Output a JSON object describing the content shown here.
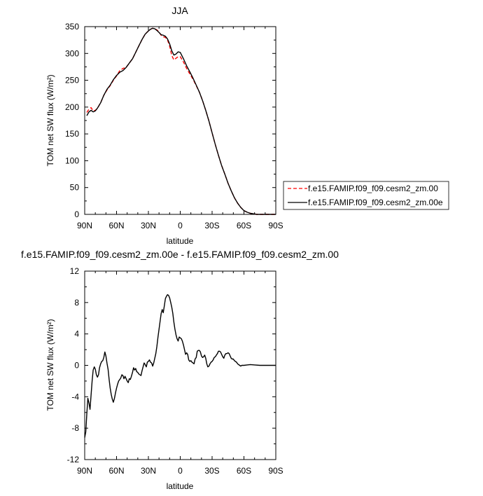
{
  "chart_data": [
    {
      "type": "line",
      "title": "JJA",
      "xlabel": "latitude",
      "ylabel": "TOM net SW flux (W/m²)",
      "xlim": [
        90,
        -90
      ],
      "ylim": [
        0,
        350
      ],
      "x_tick_values": [
        90,
        60,
        30,
        0,
        -30,
        -60,
        -90
      ],
      "x_tick_labels": [
        "90N",
        "60N",
        "30N",
        "0",
        "30S",
        "60S",
        "90S"
      ],
      "y_tick_values": [
        0,
        50,
        100,
        150,
        200,
        250,
        300,
        350
      ],
      "y_tick_labels": [
        "0",
        "50",
        "100",
        "150",
        "200",
        "250",
        "300",
        "350"
      ],
      "legend_position": "right",
      "series": [
        {
          "name": "f.e15.FAMIP.f09_f09.cesm2_zm.00",
          "color": "#ff0000",
          "dash": "dashed",
          "x": [
            88,
            86,
            84,
            82,
            80,
            78,
            75,
            72,
            69,
            66,
            63,
            60,
            57,
            54,
            51,
            48,
            45,
            42,
            39,
            36,
            33,
            30,
            28,
            26,
            24,
            22,
            20,
            18,
            16,
            14,
            12,
            10,
            8,
            6,
            4,
            2,
            0,
            -3,
            -6,
            -9,
            -12,
            -15,
            -18,
            -21,
            -24,
            -27,
            -30,
            -33,
            -36,
            -39,
            -42,
            -45,
            -48,
            -51,
            -54,
            -57,
            -60,
            -63,
            -66,
            -69,
            -72,
            -75,
            -78,
            -81,
            -84,
            -87,
            -90
          ],
          "y": [
            190,
            196,
            199,
            193,
            194,
            198,
            208,
            222,
            232,
            240,
            250,
            258,
            268,
            272,
            274,
            282,
            290,
            302,
            314,
            326,
            336,
            342,
            345,
            347,
            346,
            344,
            340,
            334,
            331,
            330,
            325,
            314,
            296,
            288,
            291,
            294,
            294,
            284,
            272,
            262,
            252,
            240,
            228,
            212,
            194,
            174,
            152,
            130,
            110,
            91,
            75,
            58,
            44,
            31,
            21,
            13,
            7,
            4,
            2,
            1,
            0,
            0,
            0,
            0,
            0,
            0,
            0
          ]
        },
        {
          "name": "f.e15.FAMIP.f09_f09.cesm2_zm.00e",
          "color": "#000000",
          "dash": "solid",
          "x": [
            88,
            86,
            84,
            82,
            80,
            78,
            75,
            72,
            69,
            66,
            63,
            60,
            57,
            54,
            51,
            48,
            45,
            42,
            39,
            36,
            33,
            30,
            28,
            26,
            24,
            22,
            20,
            18,
            16,
            14,
            12,
            10,
            8,
            6,
            4,
            2,
            0,
            -3,
            -6,
            -9,
            -12,
            -15,
            -18,
            -21,
            -24,
            -27,
            -30,
            -33,
            -36,
            -39,
            -42,
            -45,
            -48,
            -51,
            -54,
            -57,
            -60,
            -63,
            -66,
            -69,
            -72,
            -75,
            -78,
            -81,
            -84,
            -87,
            -90
          ],
          "y": [
            184,
            191,
            194,
            191,
            193,
            198,
            208,
            222,
            233,
            241,
            251,
            259,
            265,
            268,
            274,
            282,
            290,
            302,
            314,
            326,
            336,
            342,
            345,
            347,
            346,
            343,
            339,
            335,
            334,
            332,
            327,
            318,
            305,
            297,
            299,
            303,
            302,
            290,
            277,
            266,
            254,
            241,
            228,
            212,
            194,
            174,
            152,
            130,
            110,
            91,
            75,
            58,
            44,
            31,
            21,
            13,
            7,
            4,
            2,
            1,
            0,
            0,
            0,
            0,
            0,
            0,
            0
          ]
        }
      ]
    },
    {
      "type": "line",
      "title": "f.e15.FAMIP.f09_f09.cesm2_zm.00e - f.e15.FAMIP.f09_f09.cesm2_zm.00",
      "xlabel": "latitude",
      "ylabel": "TOM net SW flux (W/m²)",
      "xlim": [
        90,
        -90
      ],
      "ylim": [
        -12,
        12
      ],
      "x_tick_values": [
        90,
        60,
        30,
        0,
        -30,
        -60,
        -90
      ],
      "x_tick_labels": [
        "90N",
        "60N",
        "30N",
        "0",
        "30S",
        "60S",
        "90S"
      ],
      "y_tick_values": [
        -12,
        -8,
        -4,
        0,
        4,
        8,
        12
      ],
      "y_tick_labels": [
        "-12",
        "-8",
        "-4",
        "0",
        "4",
        "8",
        "12"
      ],
      "series": [
        {
          "color": "#000000",
          "dash": "solid",
          "x": [
            90,
            89,
            88,
            87,
            86,
            85,
            84,
            83,
            82,
            81,
            80,
            79,
            78,
            77,
            76,
            75,
            74,
            73,
            72,
            71,
            70,
            69,
            68,
            67,
            66,
            65,
            64,
            63,
            62,
            61,
            60,
            59,
            58,
            57,
            56,
            55,
            54,
            53,
            52,
            51,
            50,
            49,
            48,
            47,
            46,
            45,
            44,
            43,
            42,
            41,
            40,
            39,
            38,
            37,
            36,
            35,
            34,
            33,
            32,
            31,
            30,
            29,
            28,
            27,
            26,
            25,
            24,
            23,
            22,
            21,
            20,
            19,
            18,
            17,
            16,
            15,
            14,
            13,
            12,
            11,
            10,
            9,
            8,
            7,
            6,
            5,
            4,
            3,
            2,
            1,
            0,
            -1,
            -2,
            -3,
            -4,
            -5,
            -6,
            -7,
            -8,
            -9,
            -10,
            -11,
            -12,
            -13,
            -14,
            -15,
            -16,
            -17,
            -18,
            -19,
            -20,
            -21,
            -22,
            -23,
            -24,
            -25,
            -26,
            -27,
            -28,
            -29,
            -30,
            -31,
            -32,
            -33,
            -34,
            -35,
            -36,
            -37,
            -38,
            -39,
            -40,
            -41,
            -42,
            -43,
            -44,
            -45,
            -46,
            -47,
            -48,
            -49,
            -50,
            -51,
            -52,
            -53,
            -54,
            -55,
            -56,
            -57,
            -58,
            -60,
            -63,
            -66,
            -70,
            -75,
            -80,
            -85,
            -90
          ],
          "y": [
            -9.2,
            -8.5,
            -6.2,
            -4.2,
            -4.8,
            -5.6,
            -3.8,
            -2.0,
            -0.6,
            -0.2,
            -0.5,
            -1.2,
            -1.5,
            -1.2,
            -0.3,
            0.2,
            0.5,
            0.6,
            1.0,
            1.7,
            1.2,
            0.3,
            -0.5,
            -1.8,
            -2.9,
            -3.7,
            -4.3,
            -4.7,
            -4.2,
            -3.5,
            -2.9,
            -2.4,
            -2.0,
            -1.8,
            -1.6,
            -1.2,
            -1.3,
            -1.7,
            -1.4,
            -1.7,
            -2.0,
            -2.2,
            -1.7,
            -1.8,
            -1.4,
            -0.9,
            -0.3,
            -0.6,
            -0.4,
            -0.8,
            -0.9,
            -1.1,
            -1.2,
            -1.3,
            -0.7,
            -0.2,
            0.3,
            0.1,
            -0.2,
            0.4,
            0.5,
            0.7,
            0.4,
            0.3,
            -0.1,
            0.3,
            0.9,
            1.5,
            2.4,
            3.6,
            4.6,
            5.6,
            6.6,
            7.1,
            6.7,
            7.6,
            8.5,
            8.8,
            9.0,
            8.9,
            8.6,
            8.0,
            7.4,
            6.6,
            5.5,
            4.6,
            3.9,
            3.4,
            3.1,
            3.6,
            3.5,
            3.4,
            3.1,
            2.6,
            2.0,
            1.4,
            1.6,
            1.4,
            0.7,
            0.5,
            0.6,
            0.4,
            0.3,
            0.2,
            0.8,
            1.0,
            1.8,
            1.9,
            1.9,
            1.7,
            1.2,
            1.0,
            1.1,
            1.3,
            0.9,
            0.2,
            -0.2,
            -0.1,
            0.2,
            0.4,
            0.5,
            0.7,
            1.0,
            1.1,
            1.3,
            1.5,
            1.8,
            1.8,
            1.7,
            1.4,
            1.1,
            0.9,
            1.3,
            1.5,
            1.5,
            1.6,
            1.5,
            1.2,
            0.9,
            0.8,
            0.8,
            0.6,
            0.5,
            0.4,
            0.2,
            0.1,
            0.0,
            -0.1,
            0.0,
            0.0,
            0.05,
            0.1,
            0.05,
            0.0,
            0.0,
            0.0,
            0.0
          ]
        }
      ]
    }
  ]
}
